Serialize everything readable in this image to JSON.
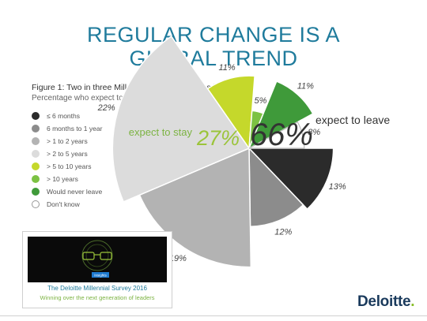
{
  "slide": {
    "title_line1": "REGULAR CHANGE IS A",
    "title_line2": "GLOBAL TREND",
    "colors": {
      "title": "#1f7b9c",
      "green": "#7cb342",
      "dark": "#1a3a5c"
    }
  },
  "figure": {
    "title": "Figure 1: Two in three Millennials expect to leave by 2020",
    "subtitle": "Percentage who expect to leave in the next…"
  },
  "chart_data": {
    "type": "pie",
    "title": "Figure 1: Two in three Millennials expect to leave by 2020",
    "subtitle": "Percentage who expect to leave in the next…",
    "legend_position": "left",
    "slices": [
      {
        "label": "≤ 6 months",
        "value": 13,
        "color": "#2b2b2b",
        "display": "13%"
      },
      {
        "label": "6 months to 1 year",
        "value": 12,
        "color": "#8c8c8c",
        "display": "12%"
      },
      {
        "label": "> 1 to 2 years",
        "value": 19,
        "color": "#b3b3b3",
        "display": "19%"
      },
      {
        "label": "> 2 to 5 years",
        "value": 22,
        "color": "#dcdcdc",
        "display": "22%"
      },
      {
        "label": "> 5 to 10 years",
        "value": 11,
        "color": "#c5d82b",
        "display": "11%"
      },
      {
        "label": "> 10 years",
        "value": 5,
        "color": "#7cc243",
        "display": "5%"
      },
      {
        "label": "Would never leave",
        "value": 11,
        "color": "#3f9a3a",
        "display": "11%"
      },
      {
        "label": "Don't know",
        "value": 8,
        "color": "#ffffff",
        "display": "8%"
      }
    ],
    "annotations": {
      "leave_pct": "66%",
      "leave_text": "expect to leave",
      "stay_pct": "27%",
      "stay_text": "expect to stay"
    }
  },
  "thumbnail": {
    "badge": "Insights",
    "title": "The Deloitte Millennial Survey 2016",
    "subtitle": "Winning over the next generation of leaders"
  },
  "logo": {
    "text": "Deloitte",
    "dot": "."
  }
}
